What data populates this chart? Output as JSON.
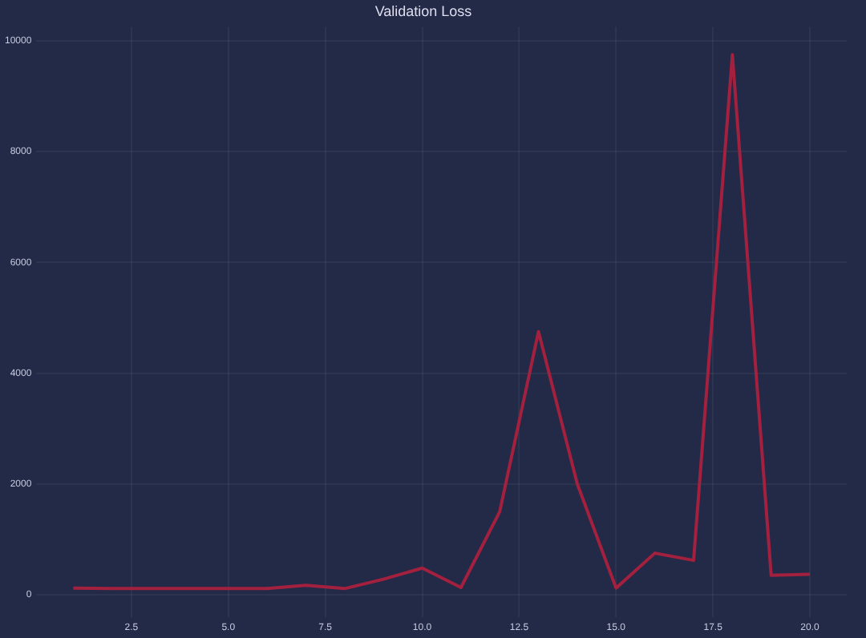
{
  "chart_data": {
    "type": "line",
    "title": "Validation Loss",
    "x": [
      1,
      2,
      3,
      4,
      5,
      6,
      7,
      8,
      9,
      10,
      11,
      12,
      13,
      14,
      15,
      16,
      17,
      18,
      19,
      20
    ],
    "series": [
      {
        "color": "#a3203f",
        "values": [
          120,
          110,
          110,
          110,
          110,
          110,
          170,
          110,
          280,
          480,
          130,
          1500,
          4750,
          2000,
          120,
          750,
          620,
          9750,
          350,
          370
        ]
      }
    ],
    "xlim": [
      0.05,
      20.95
    ],
    "xticks": [
      2.5,
      {
        "value": 5,
        "label": "5.0"
      },
      7.5,
      {
        "value": 10,
        "label": "10.0"
      },
      12.5,
      {
        "value": 15,
        "label": "15.0"
      },
      17.5,
      {
        "value": 20,
        "label": "20.0"
      }
    ],
    "ylim": [
      -400,
      10250
    ],
    "yticks": [
      0,
      2000,
      4000,
      6000,
      8000,
      10000
    ],
    "grid": true,
    "legend": false,
    "marker": "none",
    "line_style": "solid"
  }
}
